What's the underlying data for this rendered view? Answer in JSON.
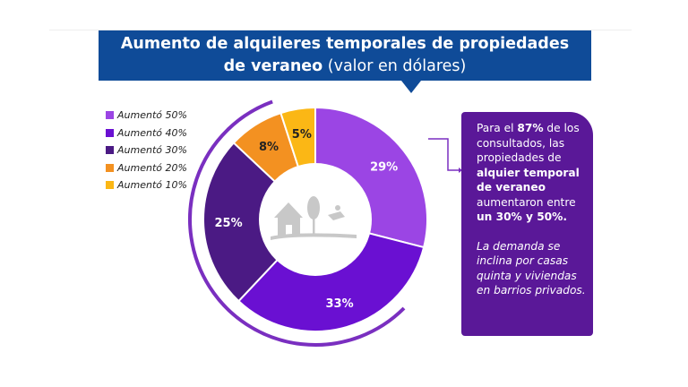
{
  "title": {
    "line1": "Aumento de alquileres temporales de propiedades",
    "line2_bold": "de veraneo",
    "line2_rest": " (valor en dólares)"
  },
  "chart_data": {
    "type": "pie",
    "donut": true,
    "title": "Aumento de alquileres temporales de propiedades de veraneo (valor en dólares)",
    "categories": [
      "Aumentó 50%",
      "Aumentó 40%",
      "Aumentó 30%",
      "Aumentó 20%",
      "Aumentó 10%"
    ],
    "values": [
      29,
      33,
      25,
      8,
      5
    ],
    "labels": [
      "29%",
      "33%",
      "25%",
      "8%",
      "5%"
    ],
    "colors": [
      "#9b45e4",
      "#6a10d2",
      "#4b1a84",
      "#f39121",
      "#fbb715"
    ],
    "legend_position": "top-left"
  },
  "callout": {
    "t1": "Para el ",
    "b1": "87%",
    "t2": " de los consultados, las propiedades de ",
    "b2": "alquier temporal de veraneo",
    "t3": " aumentaron entre ",
    "b3": "un 30% y 50%.",
    "italic": "La demanda se inclina por casas quinta y viviendas en barrios privados."
  }
}
